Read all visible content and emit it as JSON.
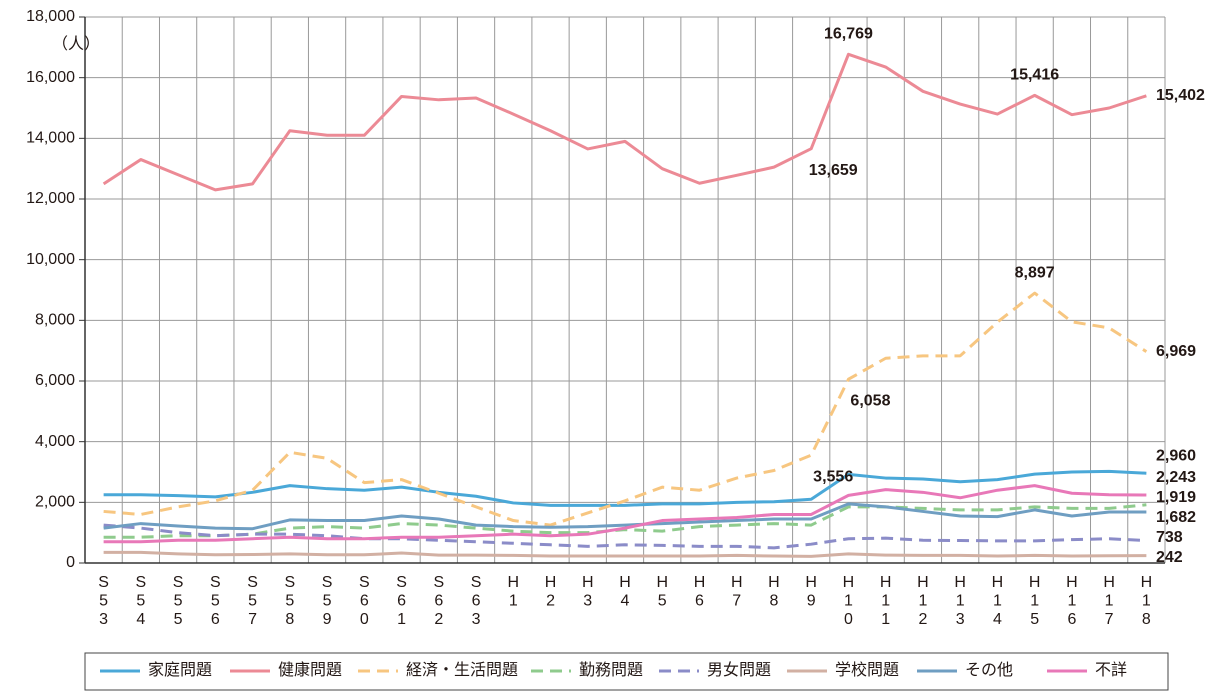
{
  "chart_data": {
    "type": "line",
    "y_label": "（人）",
    "categories": [
      "S53",
      "S54",
      "S55",
      "S56",
      "S57",
      "S58",
      "S59",
      "S60",
      "S61",
      "S62",
      "S63",
      "H1",
      "H2",
      "H3",
      "H4",
      "H5",
      "H6",
      "H7",
      "H8",
      "H9",
      "H10",
      "H11",
      "H12",
      "H13",
      "H14",
      "H15",
      "H16",
      "H17",
      "H18"
    ],
    "ylim": [
      0,
      18000
    ],
    "yticks": [
      0,
      {
        "value": 2000,
        "label": "2,000"
      },
      {
        "value": 4000,
        "label": "4,000"
      },
      {
        "value": 6000,
        "label": "6,000"
      },
      {
        "value": 8000,
        "label": "8,000"
      },
      {
        "value": 10000,
        "label": "10,000"
      },
      {
        "value": 12000,
        "label": "12,000"
      },
      {
        "value": 14000,
        "label": "14,000"
      },
      {
        "value": 16000,
        "label": "16,000"
      },
      {
        "value": 18000,
        "label": "18,000"
      }
    ],
    "grid": true,
    "legend": "bottom",
    "series": [
      {
        "name": "家庭問題",
        "color": "#4aa8d8",
        "label_color": "#3f8fb8",
        "style": "solid",
        "values": [
          2250,
          2250,
          2220,
          2180,
          2330,
          2550,
          2450,
          2400,
          2500,
          2330,
          2200,
          1980,
          1900,
          1900,
          1900,
          1950,
          1950,
          2000,
          2020,
          2100,
          2920,
          2800,
          2770,
          2680,
          2750,
          2930,
          3000,
          3020,
          2960
        ],
        "value_labels": [
          null,
          null,
          null,
          null,
          null,
          null,
          null,
          null,
          null,
          null,
          null,
          null,
          null,
          null,
          null,
          null,
          null,
          null,
          null,
          null,
          null,
          null,
          null,
          null,
          null,
          null,
          null,
          null,
          "2,960"
        ]
      },
      {
        "name": "健康問題",
        "color": "#ec8a95",
        "label_color": "#c45a6c",
        "style": "solid",
        "values": [
          12500,
          13300,
          12800,
          12300,
          12500,
          14250,
          14100,
          14100,
          15380,
          15270,
          15330,
          14800,
          14250,
          13650,
          13900,
          13000,
          12520,
          12780,
          13050,
          13659,
          16769,
          16350,
          15550,
          15130,
          14800,
          15416,
          14780,
          15000,
          15402
        ],
        "value_labels": [
          null,
          null,
          null,
          null,
          null,
          null,
          null,
          null,
          null,
          null,
          null,
          null,
          null,
          null,
          null,
          null,
          null,
          null,
          null,
          "13,659",
          "16,769",
          null,
          null,
          null,
          null,
          "15,416",
          null,
          null,
          "15,402"
        ]
      },
      {
        "name": "経済・生活問題",
        "color": "#f7c680",
        "label_color": "#c1935a",
        "style": "dashed",
        "values": [
          1700,
          1600,
          1850,
          2050,
          2400,
          3650,
          3450,
          2650,
          2750,
          2300,
          1850,
          1400,
          1250,
          1650,
          2050,
          2500,
          2400,
          2800,
          3050,
          3556,
          6058,
          6750,
          6830,
          6830,
          7940,
          8897,
          7950,
          7750,
          6969
        ],
        "value_labels": [
          null,
          null,
          null,
          null,
          null,
          null,
          null,
          null,
          null,
          null,
          null,
          null,
          null,
          null,
          null,
          null,
          null,
          null,
          null,
          "3,556",
          "6,058",
          null,
          null,
          null,
          null,
          "8,897",
          null,
          null,
          "6,969"
        ]
      },
      {
        "name": "勤務問題",
        "color": "#8fcb8d",
        "label_color": "#6aa866",
        "style": "dashed",
        "values": [
          850,
          850,
          900,
          900,
          950,
          1150,
          1200,
          1150,
          1300,
          1250,
          1150,
          1050,
          1000,
          1000,
          1100,
          1050,
          1200,
          1250,
          1300,
          1250,
          1850,
          1850,
          1800,
          1750,
          1750,
          1850,
          1800,
          1800,
          1919
        ],
        "value_labels": [
          null,
          null,
          null,
          null,
          null,
          null,
          null,
          null,
          null,
          null,
          null,
          null,
          null,
          null,
          null,
          null,
          null,
          null,
          null,
          null,
          null,
          null,
          null,
          null,
          null,
          null,
          null,
          null,
          "1,919"
        ]
      },
      {
        "name": "男女問題",
        "color": "#8b8cc8",
        "label_color": "#6e6fa8",
        "style": "dashed",
        "values": [
          1250,
          1150,
          1000,
          900,
          950,
          950,
          900,
          800,
          800,
          750,
          700,
          650,
          600,
          550,
          600,
          580,
          550,
          550,
          500,
          620,
          800,
          820,
          750,
          740,
          730,
          730,
          770,
          800,
          738
        ],
        "value_labels": [
          null,
          null,
          null,
          null,
          null,
          null,
          null,
          null,
          null,
          null,
          null,
          null,
          null,
          null,
          null,
          null,
          null,
          null,
          null,
          null,
          null,
          null,
          null,
          null,
          null,
          null,
          null,
          null,
          "738"
        ]
      },
      {
        "name": "学校問題",
        "color": "#d2b0a3",
        "label_color": "#b08b7c",
        "style": "solid",
        "values": [
          350,
          350,
          300,
          270,
          280,
          300,
          270,
          270,
          330,
          260,
          260,
          250,
          230,
          230,
          230,
          230,
          230,
          250,
          230,
          220,
          300,
          260,
          250,
          250,
          230,
          250,
          230,
          240,
          242
        ],
        "value_labels": [
          null,
          null,
          null,
          null,
          null,
          null,
          null,
          null,
          null,
          null,
          null,
          null,
          null,
          null,
          null,
          null,
          null,
          null,
          null,
          null,
          null,
          null,
          null,
          null,
          null,
          null,
          null,
          null,
          "242"
        ]
      },
      {
        "name": "その他",
        "color": "#6f9ec2",
        "label_color": "#5a86a8",
        "style": "solid",
        "values": [
          1150,
          1300,
          1220,
          1150,
          1130,
          1420,
          1400,
          1400,
          1550,
          1450,
          1250,
          1200,
          1180,
          1200,
          1250,
          1300,
          1350,
          1400,
          1450,
          1450,
          1950,
          1850,
          1700,
          1550,
          1530,
          1750,
          1550,
          1680,
          1682
        ],
        "value_labels": [
          null,
          null,
          null,
          null,
          null,
          null,
          null,
          null,
          null,
          null,
          null,
          null,
          null,
          null,
          null,
          null,
          null,
          null,
          null,
          null,
          null,
          null,
          null,
          null,
          null,
          null,
          null,
          null,
          "1,682"
        ]
      },
      {
        "name": "不詳",
        "color": "#e878b8",
        "label_color": "#c4508f",
        "style": "solid",
        "values": [
          700,
          700,
          750,
          750,
          800,
          850,
          800,
          800,
          850,
          850,
          900,
          950,
          900,
          950,
          1150,
          1400,
          1450,
          1500,
          1600,
          1600,
          2230,
          2420,
          2330,
          2150,
          2400,
          2550,
          2300,
          2250,
          2243
        ],
        "value_labels": [
          null,
          null,
          null,
          null,
          null,
          null,
          null,
          null,
          null,
          null,
          null,
          null,
          null,
          null,
          null,
          null,
          null,
          null,
          null,
          null,
          null,
          null,
          null,
          null,
          null,
          null,
          null,
          null,
          "2,243"
        ]
      }
    ]
  }
}
